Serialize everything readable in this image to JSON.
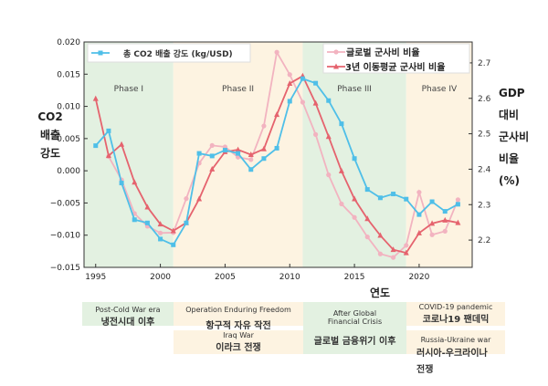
{
  "chart_data": {
    "type": "line",
    "xlabel": "연도",
    "ylabel_left": [
      "CO2",
      "배출",
      "강도"
    ],
    "ylabel_right": [
      "GDP",
      "대비",
      "군사비",
      "비율",
      "(%)"
    ],
    "xlim": [
      1994.1,
      2024.1
    ],
    "ylim_left": [
      -0.015,
      0.02
    ],
    "ylim_right": [
      2.123,
      2.759
    ],
    "xticks": [
      1995,
      2000,
      2005,
      2010,
      2015,
      2020
    ],
    "yticks_left": [
      "0.020",
      "0.015",
      "0.010",
      "0.005",
      "0.000",
      "−0.005",
      "−0.010",
      "−0.015"
    ],
    "yticks_right": [
      "2.7",
      "2.6",
      "2.5",
      "2.4",
      "2.3",
      "2.2"
    ],
    "grid": false,
    "phases": [
      {
        "label": "Phase I",
        "from": 1994.1,
        "to": 2001,
        "color": "#e3f1e1"
      },
      {
        "label": "Phase II",
        "from": 2001,
        "to": 2011,
        "color": "#fdf3e1"
      },
      {
        "label": "Phase III",
        "from": 2011,
        "to": 2019,
        "color": "#e3f1e1"
      },
      {
        "label": "Phase IV",
        "from": 2019,
        "to": 2024.1,
        "color": "#fdf3e1"
      }
    ],
    "series": [
      {
        "name": "총 CO2 배출 강도 (kg/USD)",
        "axis": "left",
        "color": "#4fbfe8",
        "marker": "square",
        "x": [
          1995,
          1996,
          1997,
          1998,
          1999,
          2000,
          2001,
          2002,
          2003,
          2004,
          2005,
          2006,
          2007,
          2008,
          2009,
          2010,
          2011,
          2012,
          2013,
          2014,
          2015,
          2016,
          2017,
          2018,
          2019,
          2020,
          2021,
          2022,
          2023
        ],
        "y": [
          0.0039,
          0.0062,
          -0.0019,
          -0.0076,
          -0.0081,
          -0.0106,
          -0.0115,
          -0.0081,
          0.0027,
          0.0023,
          0.0032,
          0.0027,
          0.0002,
          0.0019,
          0.0035,
          0.0108,
          0.0143,
          0.0136,
          0.0109,
          0.0073,
          0.0019,
          -0.0029,
          -0.0042,
          -0.0036,
          -0.0044,
          -0.0068,
          -0.0048,
          -0.0063,
          -0.0052
        ]
      },
      {
        "name": "글로벌 군사비 비율",
        "axis": "right",
        "color": "#f2b3c0",
        "marker": "circle",
        "x": [
          1996,
          1997,
          1998,
          1999,
          2000,
          2001,
          2002,
          2003,
          2004,
          2005,
          2006,
          2007,
          2008,
          2009,
          2010,
          2011,
          2012,
          2013,
          2014,
          2015,
          2016,
          2017,
          2018,
          2019,
          2020,
          2021,
          2022,
          2023
        ],
        "y": [
          2.436,
          2.37,
          2.275,
          2.239,
          2.22,
          2.221,
          2.317,
          2.417,
          2.467,
          2.463,
          2.434,
          2.427,
          2.522,
          2.73,
          2.667,
          2.589,
          2.498,
          2.384,
          2.302,
          2.264,
          2.209,
          2.161,
          2.151,
          2.185,
          2.335,
          2.215,
          2.225,
          2.314
        ]
      },
      {
        "name": "3년 이동평균 군사비 비율",
        "axis": "right",
        "color": "#e5636e",
        "marker": "triangle",
        "x": [
          1995,
          1996,
          1997,
          1998,
          1999,
          2000,
          2001,
          2002,
          2003,
          2004,
          2005,
          2006,
          2007,
          2008,
          2009,
          2010,
          2011,
          2012,
          2013,
          2014,
          2015,
          2016,
          2017,
          2018,
          2019,
          2020,
          2021,
          2022,
          2023
        ],
        "y": [
          2.599,
          2.438,
          2.47,
          2.363,
          2.293,
          2.245,
          2.226,
          2.249,
          2.316,
          2.4,
          2.449,
          2.455,
          2.441,
          2.457,
          2.554,
          2.642,
          2.663,
          2.586,
          2.492,
          2.395,
          2.316,
          2.26,
          2.213,
          2.173,
          2.164,
          2.22,
          2.247,
          2.256,
          2.249
        ]
      }
    ]
  },
  "events": [
    {
      "en": "Post-Cold War era",
      "ko": "냉전시대 이후"
    },
    {
      "en": "Operation Enduring Freedom",
      "ko": "항구적 자유 작전"
    },
    {
      "en": "Iraq War",
      "ko": "이라크 전쟁"
    },
    {
      "en": "After Global Financial Crisis",
      "ko": "글로벌 금융위기 이후"
    },
    {
      "en": "COVID-19 pandemic",
      "ko": "코로나19 팬데믹"
    },
    {
      "en": "Russia-Ukraine war",
      "ko": "러시아-우크라이나 전쟁"
    }
  ]
}
